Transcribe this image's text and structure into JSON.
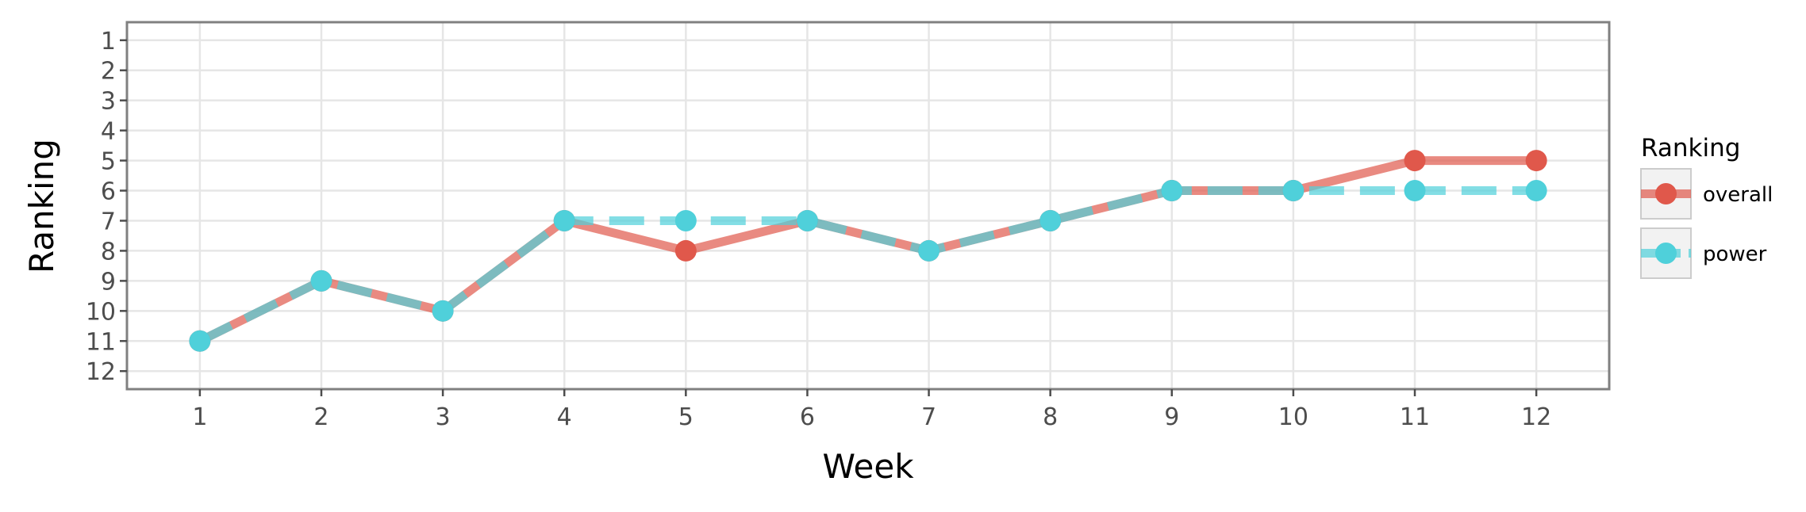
{
  "chart_data": {
    "type": "line",
    "xlabel": "Week",
    "ylabel": "Ranking",
    "x": [
      1,
      2,
      3,
      4,
      5,
      6,
      7,
      8,
      9,
      10,
      11,
      12
    ],
    "xlim": [
      0.4,
      12.6
    ],
    "ylim": [
      12.6,
      0.4
    ],
    "y_reversed": true,
    "yticks": [
      1,
      2,
      3,
      4,
      5,
      6,
      7,
      8,
      9,
      10,
      11,
      12
    ],
    "grid": true,
    "legend": {
      "title": "Ranking",
      "placement": "right"
    },
    "series": [
      {
        "name": "overall",
        "color": "#e0584b",
        "line_style": "solid",
        "values": [
          11,
          9,
          10,
          7,
          8,
          7,
          8,
          7,
          6,
          6,
          5,
          5
        ]
      },
      {
        "name": "power",
        "color": "#4fd0da",
        "line_style": "dashed",
        "values": [
          11,
          9,
          10,
          7,
          7,
          7,
          8,
          7,
          6,
          6,
          6,
          6
        ]
      }
    ]
  }
}
